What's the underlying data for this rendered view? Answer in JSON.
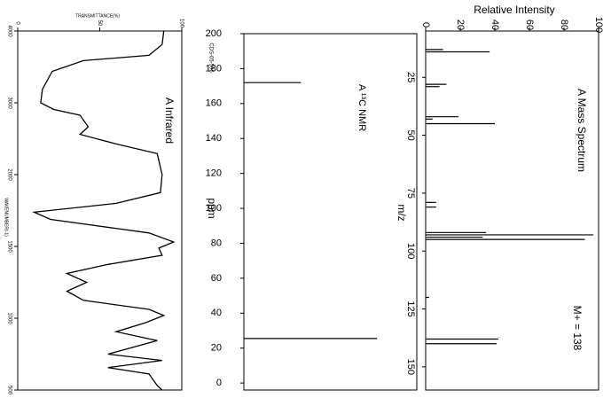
{
  "chart_data": [
    {
      "type": "line",
      "title": "A Infrared",
      "x_label": "WAVENUMBER(-1)",
      "y_label": "TRANSMITTANCE(%)",
      "x_scale": "segmented",
      "color": "#000000",
      "x": [
        4000,
        3812,
        3662,
        3588,
        3438,
        3188,
        3000,
        2907,
        2827,
        2760,
        2667,
        2560,
        2427,
        2293,
        2000,
        1875,
        1800,
        1738,
        1688,
        1594,
        1531,
        1488,
        1438,
        1375,
        1312,
        1250,
        1188,
        1125,
        1062,
        1019,
        969,
        906,
        844,
        750,
        706,
        656,
        612,
        531,
        500
      ],
      "values": [
        89,
        88,
        80,
        40,
        21,
        15,
        14,
        22,
        38,
        40,
        43,
        38,
        60,
        85,
        88,
        87,
        60,
        10,
        20,
        80,
        95,
        86,
        88,
        55,
        30,
        42,
        30,
        40,
        80,
        89,
        78,
        60,
        85,
        55,
        88,
        55,
        80,
        85,
        88
      ],
      "xlim": [
        4000,
        500
      ],
      "xticks": [
        4000,
        3000,
        2000,
        1500,
        1000,
        500
      ],
      "ylim": [
        0,
        100
      ],
      "yticks": [
        0,
        50,
        100
      ]
    },
    {
      "type": "stick",
      "title": "A ¹³C NMR",
      "x_label": "ppm",
      "annotation": "CDS-05-596",
      "color": "#000000",
      "x": [
        172,
        25.5
      ],
      "values": [
        33,
        77
      ],
      "xlim": [
        200,
        -4
      ],
      "xticks": [
        0,
        20,
        40,
        60,
        80,
        100,
        120,
        140,
        160,
        180,
        200
      ],
      "ylim": [
        0,
        100
      ]
    },
    {
      "type": "stick",
      "title": "A Mass Spectrum",
      "x_label": "m/z",
      "y_label": "Relative Intensity",
      "annotation": "M+ = 138",
      "color": "#000000",
      "x": [
        13,
        14,
        28,
        29,
        42,
        43,
        45,
        79,
        81,
        92,
        93,
        94,
        95,
        120,
        138,
        140
      ],
      "values": [
        10,
        37,
        12,
        8,
        19,
        4,
        40,
        6,
        6,
        35,
        97,
        33,
        92,
        2,
        42,
        41
      ],
      "xlim": [
        5,
        160
      ],
      "xticks": [
        25,
        50,
        75,
        100,
        125,
        150
      ],
      "ylim": [
        0,
        100
      ],
      "yticks": [
        0,
        20,
        40,
        60,
        80,
        100
      ]
    }
  ]
}
